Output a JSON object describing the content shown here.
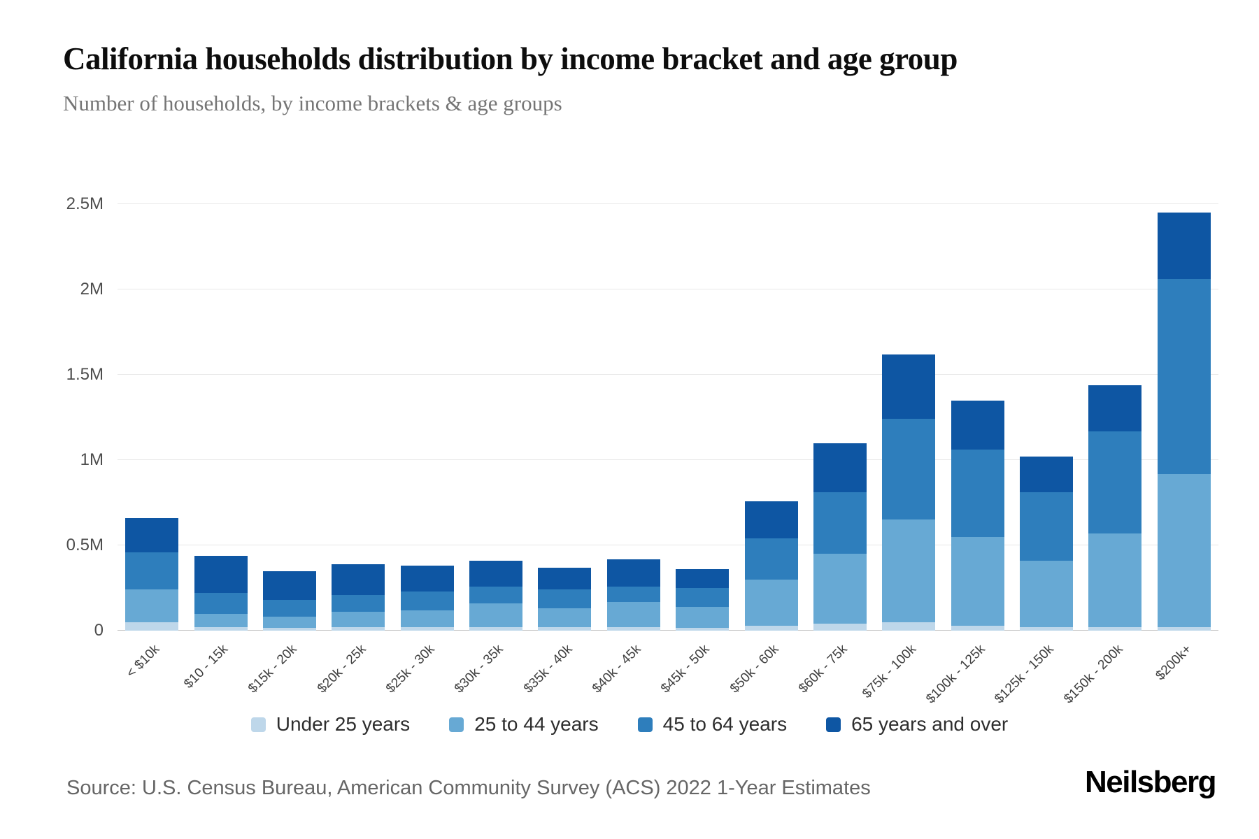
{
  "page": {
    "title": "California households distribution by income bracket and age group",
    "subtitle": "Number of households, by income brackets & age groups",
    "source": "Source: U.S. Census Bureau, American Community Survey (ACS) 2022 1-Year Estimates",
    "brand": "Neilsberg"
  },
  "chart_data": {
    "type": "bar",
    "stacked": true,
    "title": "California households distribution by income bracket and age group",
    "subtitle": "Number of households, by income brackets & age groups",
    "unit": "millions of households",
    "categories": [
      "< $10k",
      "$10 - 15k",
      "$15k - 20k",
      "$20k - 25k",
      "$25k - 30k",
      "$30k - 35k",
      "$35k - 40k",
      "$40k - 45k",
      "$45k - 50k",
      "$50k - 60k",
      "$60k - 75k",
      "$75k - 100k",
      "$100k - 125k",
      "$125k - 150k",
      "$150k - 200k",
      "$200k+"
    ],
    "series": [
      {
        "name": "Under 25 years",
        "color": "#bed7ea",
        "values": [
          0.05,
          0.02,
          0.015,
          0.02,
          0.02,
          0.02,
          0.02,
          0.02,
          0.015,
          0.03,
          0.04,
          0.05,
          0.03,
          0.02,
          0.02,
          0.02
        ]
      },
      {
        "name": "25 to 44 years",
        "color": "#67a9d4",
        "values": [
          0.19,
          0.08,
          0.065,
          0.09,
          0.1,
          0.14,
          0.11,
          0.15,
          0.125,
          0.27,
          0.41,
          0.6,
          0.52,
          0.39,
          0.55,
          0.9
        ]
      },
      {
        "name": "45 to 64 years",
        "color": "#2e7ebc",
        "values": [
          0.22,
          0.12,
          0.1,
          0.1,
          0.11,
          0.1,
          0.11,
          0.09,
          0.11,
          0.24,
          0.36,
          0.59,
          0.51,
          0.4,
          0.6,
          1.14
        ]
      },
      {
        "name": "65 years and over",
        "color": "#0e56a3",
        "values": [
          0.2,
          0.22,
          0.17,
          0.18,
          0.15,
          0.15,
          0.13,
          0.16,
          0.11,
          0.22,
          0.29,
          0.38,
          0.29,
          0.21,
          0.27,
          0.39
        ]
      }
    ],
    "xlabel": "",
    "ylabel": "",
    "ylim": [
      0,
      2.5
    ],
    "yticks": [
      0,
      0.5,
      1,
      1.5,
      2,
      2.5
    ],
    "ytick_labels": [
      "0",
      "0.5M",
      "1M",
      "1.5M",
      "2M",
      "2.5M"
    ],
    "grid": true,
    "legend_position": "bottom"
  }
}
